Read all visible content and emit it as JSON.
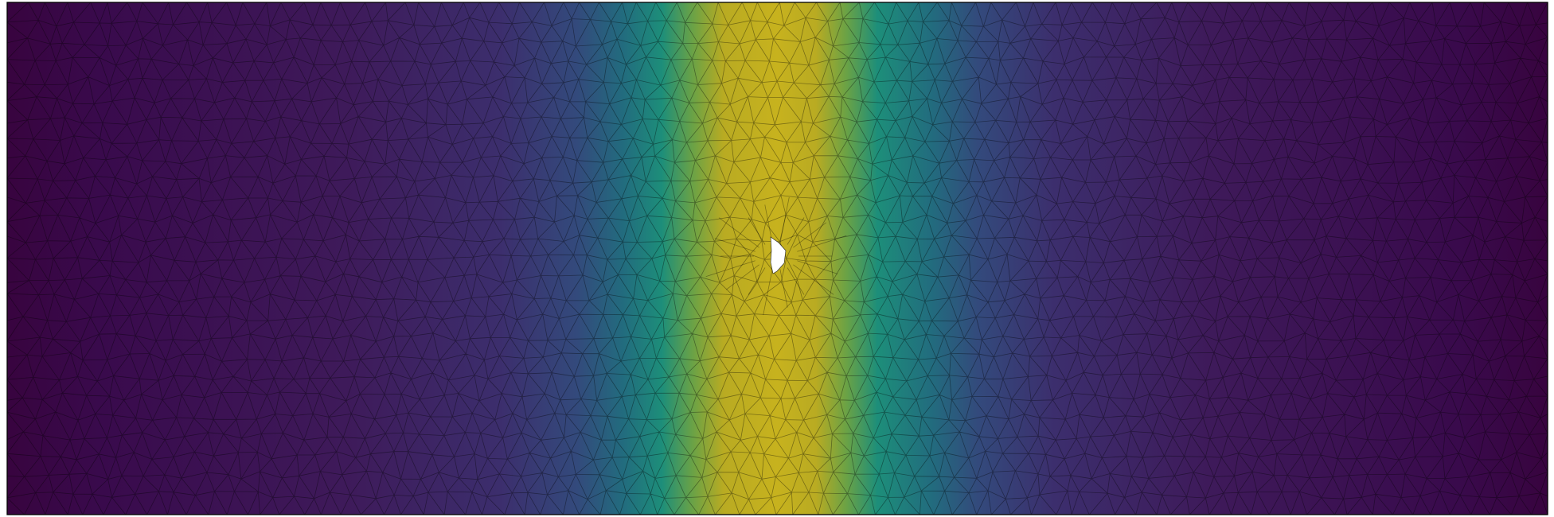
{
  "figure": {
    "kind": "triangulated mesh colored by scalar field",
    "colormap": "viridis",
    "colormap_stops": [
      "#440154",
      "#3b528b",
      "#21918c",
      "#5ec962",
      "#fde725"
    ],
    "band_center_fraction": 0.5,
    "has_hole": true,
    "mesh_edge_color": "#000000",
    "frame_color": "#000000",
    "background_color": "#ffffff"
  }
}
